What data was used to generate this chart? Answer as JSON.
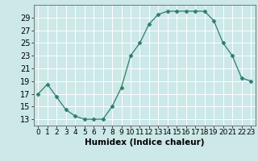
{
  "x": [
    0,
    1,
    2,
    3,
    4,
    5,
    6,
    7,
    8,
    9,
    10,
    11,
    12,
    13,
    14,
    15,
    16,
    17,
    18,
    19,
    20,
    21,
    22,
    23
  ],
  "y": [
    17,
    18.5,
    16.5,
    14.5,
    13.5,
    13,
    13,
    13,
    15,
    18,
    23,
    25,
    28,
    29.5,
    30,
    30,
    30,
    30,
    30,
    28.5,
    25,
    23,
    19.5,
    19
  ],
  "line_color": "#2e7d6e",
  "marker": "D",
  "marker_size": 2.5,
  "bg_color": "#cce8e8",
  "grid_color": "#ffffff",
  "xlabel": "Humidex (Indice chaleur)",
  "xlabel_fontsize": 7.5,
  "tick_fontsize": 7,
  "ylim": [
    12,
    31
  ],
  "yticks": [
    13,
    15,
    17,
    19,
    21,
    23,
    25,
    27,
    29
  ],
  "xlim": [
    -0.5,
    23.5
  ],
  "xticks": [
    0,
    1,
    2,
    3,
    4,
    5,
    6,
    7,
    8,
    9,
    10,
    11,
    12,
    13,
    14,
    15,
    16,
    17,
    18,
    19,
    20,
    21,
    22,
    23
  ]
}
